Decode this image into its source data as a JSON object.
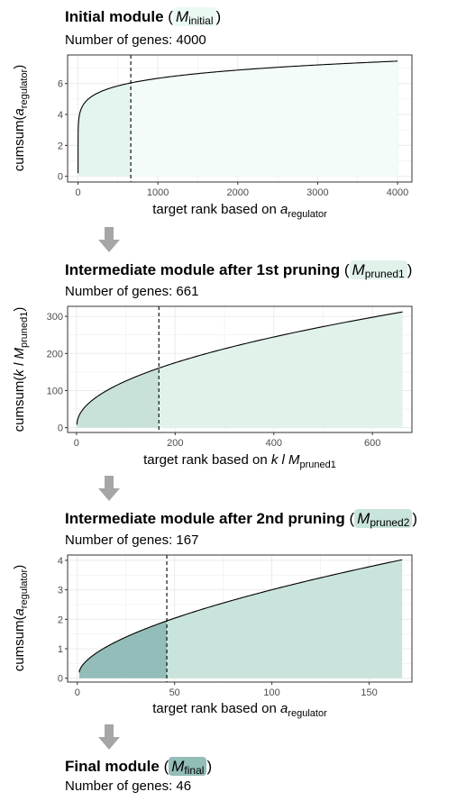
{
  "sections": [
    {
      "title": "Initial module",
      "symbol": "M",
      "symbol_sub": "initial",
      "subtitle": "Number of genes: 4000",
      "highlight": "#ebf9f3"
    },
    {
      "title": "Intermediate module after 1st pruning",
      "symbol": "M",
      "symbol_sub": "pruned1",
      "subtitle": "Number of genes: 661",
      "highlight": "#e0f2ea"
    },
    {
      "title": "Intermediate module after 2nd pruning",
      "symbol": "M",
      "symbol_sub": "pruned2",
      "subtitle": "Number of genes: 167",
      "highlight": "#c9e4dc"
    },
    {
      "title": "Final module",
      "symbol": "M",
      "symbol_sub": "final",
      "subtitle": "Number of genes: 46",
      "highlight": "#93bdb8"
    }
  ],
  "chart_data": [
    {
      "type": "area",
      "xlabel": {
        "prefix": "target rank based on ",
        "sym": "a",
        "sub": "regulator"
      },
      "ylabel": {
        "prefix": "cumsum(",
        "sym": "a",
        "sub": "regulator",
        "suffix": ")"
      },
      "xlim": [
        -130,
        4180
      ],
      "ylim": [
        -0.37,
        7.85
      ],
      "xticks": [
        0,
        1000,
        2000,
        3000,
        4000
      ],
      "yticks": [
        0,
        2,
        4,
        6
      ],
      "n_total": 4000,
      "n_kept": 661,
      "cutoff": 661,
      "y_start": 0.2,
      "y_end": 7.45,
      "curve_power": 0.12,
      "fill_kept": "#e3f5ee",
      "fill_rest": "#f3fcf8",
      "grid": true
    },
    {
      "type": "area",
      "xlabel": {
        "prefix": "target rank based on ",
        "sym": "k l M",
        "sub": "pruned1"
      },
      "ylabel": {
        "prefix": "cumsum(",
        "sym": "k l M",
        "sub": "pruned1",
        "suffix": ")"
      },
      "xlim": [
        -18,
        680
      ],
      "ylim": [
        -13,
        327
      ],
      "xticks": [
        0,
        200,
        400,
        600
      ],
      "yticks": [
        0,
        100,
        200,
        300
      ],
      "n_total": 661,
      "n_kept": 167,
      "cutoff": 167,
      "y_start": 8,
      "y_end": 312,
      "curve_power": 0.5,
      "fill_kept": "#c8e2d9",
      "fill_rest": "#e0f2ea",
      "grid": true
    },
    {
      "type": "area",
      "xlabel": {
        "prefix": "target rank based on ",
        "sym": "a",
        "sub": "regulator"
      },
      "ylabel": {
        "prefix": "cumsum(",
        "sym": "a",
        "sub": "regulator",
        "suffix": ")"
      },
      "xlim": [
        -5,
        172
      ],
      "ylim": [
        -0.13,
        4.18
      ],
      "xticks": [
        0,
        50,
        100,
        150
      ],
      "yticks": [
        0,
        1,
        2,
        3,
        4
      ],
      "n_total": 167,
      "n_kept": 46,
      "cutoff": 46,
      "y_start": 0.2,
      "y_end": 4.02,
      "curve_power": 0.6,
      "fill_kept": "#93bdb8",
      "fill_rest": "#c9e4dc",
      "grid": true
    }
  ]
}
